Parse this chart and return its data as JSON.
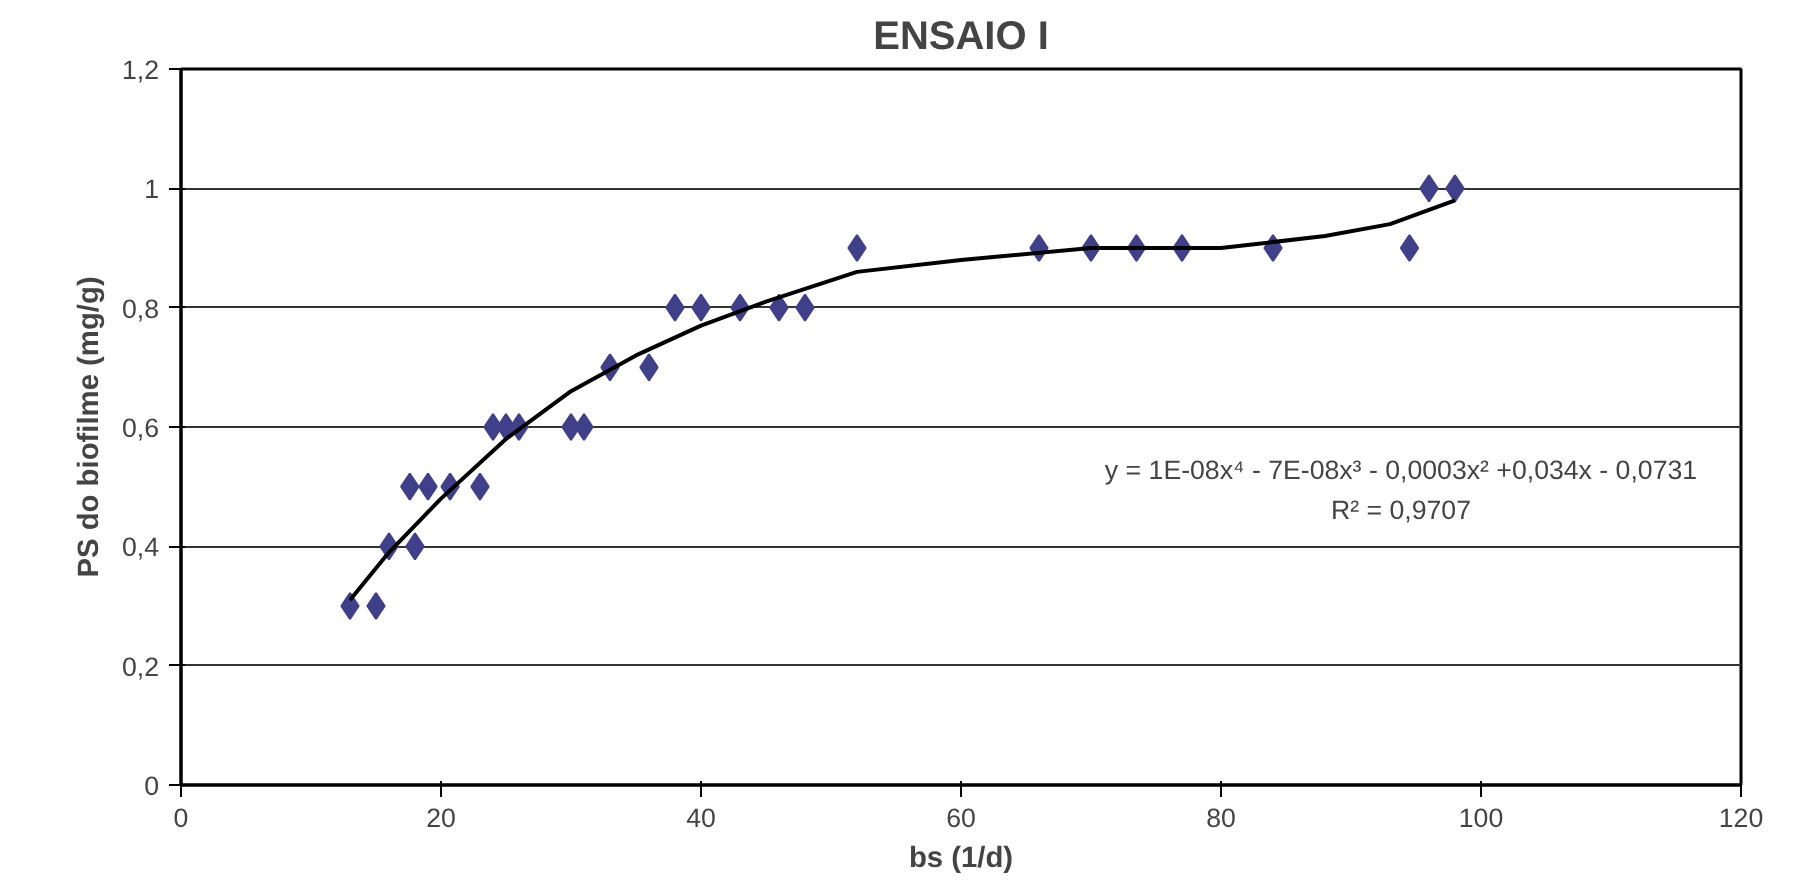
{
  "chart_data": {
    "type": "scatter",
    "title": "ENSAIO I",
    "xlabel": "bs (1/d)",
    "ylabel": "PS do biofilme (mg/g)",
    "xlim": [
      0,
      120
    ],
    "xticks": [
      0,
      20,
      40,
      60,
      80,
      100,
      120
    ],
    "ylim": [
      0,
      1.2
    ],
    "yticks": [
      0,
      {
        "value": 0.2,
        "label": "0,2"
      },
      {
        "value": 0.4,
        "label": "0,4"
      },
      {
        "value": 0.6,
        "label": "0,6"
      },
      {
        "value": 0.8,
        "label": "0,8"
      },
      1,
      {
        "value": 1.2,
        "label": "1,2"
      }
    ],
    "grid": "y",
    "series": [
      {
        "marker": "diamond",
        "color": "#40408a",
        "x": [
          13,
          15,
          16,
          18,
          17.6,
          19,
          20.7,
          23,
          24,
          25,
          26,
          30,
          31,
          33,
          36,
          38,
          40,
          43,
          46,
          48,
          52,
          66,
          70,
          73.5,
          77,
          84,
          94.5,
          96,
          98
        ],
        "values": [
          0.3,
          0.3,
          0.4,
          0.4,
          0.5,
          0.5,
          0.5,
          0.5,
          0.6,
          0.6,
          0.6,
          0.6,
          0.6,
          0.7,
          0.7,
          0.8,
          0.8,
          0.8,
          0.8,
          0.8,
          0.9,
          0.9,
          0.9,
          0.9,
          0.9,
          0.9,
          0.9,
          1,
          1
        ]
      },
      {
        "type": "line",
        "marker": "none",
        "line_style": "solid",
        "color": "#000000",
        "x": [
          13,
          16,
          20,
          25,
          30,
          35,
          40,
          45,
          52,
          60,
          70,
          80,
          88,
          93,
          98
        ],
        "values": [
          0.31,
          0.39,
          0.48,
          0.58,
          0.66,
          0.72,
          0.77,
          0.81,
          0.86,
          0.88,
          0.9,
          0.9,
          0.92,
          0.94,
          0.98
        ]
      }
    ],
    "annotations": [
      "y = 1E-08x⁴ - 7E-08x³ - 0,0003x² +0,034x - 0,0731",
      "R² = 0,9707"
    ]
  }
}
